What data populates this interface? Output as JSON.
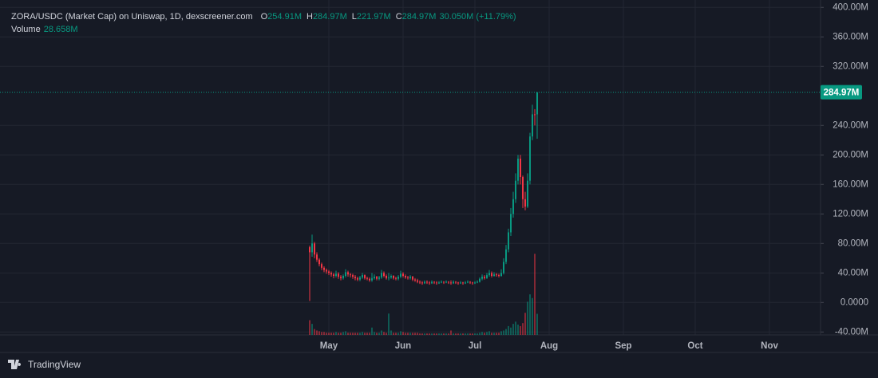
{
  "chart_data": {
    "type": "candlestick",
    "title": "ZORA/USDC (Market Cap) on Uniswap, 1D, dexscreener.com",
    "legend_items": [
      {
        "key": "O",
        "label": "254.91M"
      },
      {
        "key": "H",
        "label": "284.97M"
      },
      {
        "key": "L",
        "label": "221.97M"
      },
      {
        "key": "C",
        "label": "284.97M"
      }
    ],
    "change_label": "30.050M (+11.79%)",
    "volume_title": "Volume",
    "volume_label": "28.658M",
    "last_price_label": "284.97M",
    "brand": "TradingView",
    "up_color": "#089981",
    "down_color": "#f23645",
    "grid": true,
    "xlim": [
      -16.33,
      326.33
    ],
    "xticks": [
      {
        "value": 121,
        "label": "May"
      },
      {
        "value": 152,
        "label": "Jun"
      },
      {
        "value": 182,
        "label": "Jul"
      },
      {
        "value": 213,
        "label": "Aug"
      },
      {
        "value": 244,
        "label": "Sep"
      },
      {
        "value": 274,
        "label": "Oct"
      },
      {
        "value": 305,
        "label": "Nov"
      }
    ],
    "ylim": [
      -44,
      410
    ],
    "yticks": [
      {
        "value": 400,
        "label": "400.00M"
      },
      {
        "value": 360,
        "label": "360.00M"
      },
      {
        "value": 320,
        "label": "320.00M"
      },
      {
        "value": 240,
        "label": "240.00M"
      },
      {
        "value": 200,
        "label": "200.00M"
      },
      {
        "value": 160,
        "label": "160.00M"
      },
      {
        "value": 120,
        "label": "120.00M"
      },
      {
        "value": 80,
        "label": "80.00M"
      },
      {
        "value": 40,
        "label": "40.00M"
      },
      {
        "value": 0,
        "label": "0.0000"
      },
      {
        "value": -40,
        "label": "-40.00M"
      }
    ],
    "y2lim": [
      0,
      454
    ],
    "x": [
      113,
      114,
      115,
      116,
      117,
      118,
      119,
      120,
      121,
      122,
      123,
      124,
      125,
      126,
      127,
      128,
      129,
      130,
      131,
      132,
      133,
      134,
      135,
      136,
      137,
      138,
      139,
      140,
      141,
      142,
      143,
      144,
      145,
      146,
      147,
      148,
      149,
      150,
      151,
      152,
      153,
      154,
      155,
      156,
      157,
      158,
      159,
      160,
      161,
      162,
      163,
      164,
      165,
      166,
      167,
      168,
      169,
      170,
      171,
      172,
      173,
      174,
      175,
      176,
      177,
      178,
      179,
      180,
      181,
      182,
      183,
      184,
      185,
      186,
      187,
      188,
      189,
      190,
      191,
      192,
      193,
      194,
      195,
      196,
      197,
      198,
      199,
      200,
      201,
      202,
      203,
      204,
      205,
      206,
      207,
      208
    ],
    "open": [
      75,
      68,
      80,
      65,
      58,
      52,
      47,
      44,
      42,
      40,
      38,
      36,
      39,
      35,
      33,
      36,
      41,
      38,
      37,
      35,
      33,
      31,
      34,
      37,
      33,
      32,
      30,
      33,
      35,
      32,
      34,
      40,
      36,
      33,
      34,
      36,
      33,
      32,
      35,
      39,
      36,
      34,
      33,
      35,
      31,
      30,
      28,
      27,
      26,
      28,
      27,
      26,
      28,
      27,
      26,
      27,
      28,
      27,
      28,
      27,
      26,
      28,
      27,
      26,
      27,
      26,
      27,
      28,
      27,
      26,
      27,
      28,
      32,
      35,
      33,
      37,
      40,
      36,
      38,
      37,
      36,
      40,
      55,
      72,
      95,
      120,
      140,
      165,
      195,
      170,
      140,
      130,
      165,
      225,
      255,
      254.91
    ],
    "high": [
      77,
      92,
      82,
      68,
      60,
      54,
      49,
      46,
      44,
      42,
      40,
      43,
      41,
      37,
      38,
      45,
      43,
      40,
      39,
      37,
      35,
      36,
      40,
      38,
      35,
      34,
      40,
      38,
      36,
      36,
      44,
      42,
      38,
      40,
      38,
      37,
      35,
      37,
      43,
      41,
      38,
      36,
      37,
      36,
      33,
      32,
      30,
      29,
      30,
      30,
      29,
      30,
      29,
      29,
      29,
      30,
      29,
      30,
      29,
      30,
      30,
      29,
      28,
      29,
      28,
      29,
      30,
      29,
      28,
      29,
      30,
      34,
      38,
      37,
      40,
      44,
      42,
      41,
      40,
      39,
      45,
      60,
      78,
      100,
      128,
      150,
      175,
      200,
      200,
      172,
      150,
      175,
      230,
      268,
      262,
      284.97
    ],
    "low": [
      2,
      62,
      60,
      55,
      49,
      44,
      41,
      39,
      37,
      35,
      33,
      34,
      32,
      30,
      31,
      34,
      35,
      34,
      32,
      30,
      29,
      29,
      32,
      31,
      30,
      28,
      28,
      31,
      30,
      30,
      32,
      34,
      31,
      30,
      32,
      31,
      30,
      30,
      33,
      34,
      32,
      31,
      31,
      29,
      28,
      26,
      25,
      24,
      25,
      25,
      24,
      25,
      25,
      24,
      25,
      26,
      25,
      26,
      25,
      24,
      25,
      25,
      24,
      25,
      24,
      25,
      26,
      25,
      24,
      25,
      26,
      27,
      30,
      31,
      32,
      35,
      34,
      35,
      35,
      34,
      35,
      38,
      52,
      68,
      90,
      115,
      135,
      160,
      160,
      128,
      125,
      128,
      160,
      220,
      240,
      221.97
    ],
    "close": [
      68,
      80,
      65,
      58,
      52,
      47,
      44,
      42,
      40,
      38,
      36,
      39,
      35,
      33,
      36,
      41,
      38,
      37,
      35,
      33,
      31,
      34,
      37,
      33,
      32,
      30,
      33,
      35,
      32,
      34,
      40,
      36,
      33,
      34,
      36,
      33,
      32,
      35,
      39,
      36,
      34,
      33,
      35,
      31,
      30,
      28,
      27,
      26,
      28,
      27,
      26,
      28,
      27,
      26,
      27,
      28,
      27,
      28,
      27,
      26,
      28,
      27,
      26,
      27,
      26,
      27,
      28,
      27,
      26,
      27,
      28,
      32,
      35,
      33,
      37,
      40,
      36,
      38,
      37,
      36,
      40,
      55,
      72,
      95,
      120,
      140,
      165,
      195,
      170,
      140,
      130,
      165,
      225,
      255,
      254.91,
      284.97
    ],
    "volume": [
      20,
      15,
      8,
      6,
      5,
      4,
      4,
      3,
      3,
      3,
      3,
      4,
      3,
      3,
      4,
      5,
      3,
      3,
      3,
      3,
      3,
      3,
      4,
      3,
      3,
      3,
      10,
      4,
      3,
      3,
      6,
      4,
      3,
      29,
      6,
      3,
      3,
      3,
      5,
      4,
      3,
      3,
      3,
      3,
      3,
      3,
      2,
      2,
      2,
      2,
      2,
      2,
      2,
      2,
      2,
      2,
      2,
      2,
      2,
      6,
      2,
      2,
      2,
      2,
      2,
      2,
      2,
      2,
      2,
      2,
      2,
      3,
      4,
      3,
      4,
      5,
      3,
      3,
      3,
      3,
      5,
      6,
      8,
      12,
      10,
      15,
      18,
      14,
      12,
      16,
      30,
      45,
      55,
      50,
      110,
      28.658
    ]
  }
}
